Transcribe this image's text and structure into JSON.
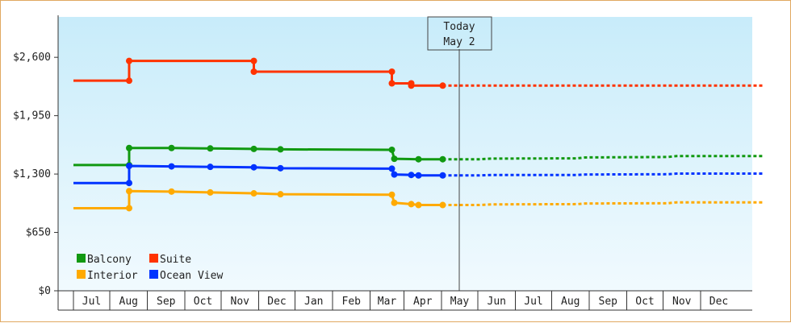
{
  "chart_data": {
    "type": "line",
    "title": "",
    "xlabel": "",
    "ylabel": "",
    "x_unit": "days from Jun 1",
    "months": [
      "Jul",
      "Aug",
      "Sep",
      "Oct",
      "Nov",
      "Dec",
      "Jan",
      "Feb",
      "Mar",
      "Apr",
      "May",
      "Jun",
      "Jul",
      "Aug",
      "Sep",
      "Oct",
      "Nov",
      "Dec"
    ],
    "y_ticks": [
      "$0",
      "$650",
      "$1,300",
      "$1,950",
      "$2,600"
    ],
    "ylim": [
      0,
      3050
    ],
    "grid": false,
    "legend_position": "bottom-left",
    "today_marker": {
      "line1": "Today",
      "line2": "May 2"
    },
    "series": [
      {
        "name": "Balcony",
        "color": "#119911",
        "actual": [
          [
            0,
            1400
          ],
          [
            46,
            1400
          ],
          [
            46,
            1590
          ],
          [
            81,
            1590
          ],
          [
            113,
            1585
          ],
          [
            149,
            1580
          ],
          [
            171,
            1575
          ],
          [
            263,
            1570
          ],
          [
            265,
            1470
          ],
          [
            285,
            1465
          ],
          [
            305,
            1465
          ]
        ],
        "forecast": [
          [
            305,
            1465
          ],
          [
            335,
            1465
          ],
          [
            345,
            1472
          ],
          [
            416,
            1475
          ],
          [
            423,
            1485
          ],
          [
            491,
            1490
          ],
          [
            498,
            1500
          ],
          [
            570,
            1500
          ]
        ]
      },
      {
        "name": "Suite",
        "color": "#ff3300",
        "actual": [
          [
            0,
            2340
          ],
          [
            46,
            2340
          ],
          [
            46,
            2560
          ],
          [
            149,
            2560
          ],
          [
            149,
            2440
          ],
          [
            263,
            2440
          ],
          [
            263,
            2310
          ],
          [
            279,
            2310
          ],
          [
            279,
            2285
          ],
          [
            305,
            2285
          ]
        ],
        "forecast": [
          [
            305,
            2285
          ],
          [
            570,
            2285
          ]
        ]
      },
      {
        "name": "Interior",
        "color": "#ffaa00",
        "actual": [
          [
            0,
            920
          ],
          [
            46,
            920
          ],
          [
            46,
            1110
          ],
          [
            81,
            1105
          ],
          [
            113,
            1095
          ],
          [
            149,
            1085
          ],
          [
            171,
            1075
          ],
          [
            263,
            1070
          ],
          [
            265,
            980
          ],
          [
            279,
            965
          ],
          [
            285,
            955
          ],
          [
            305,
            955
          ]
        ],
        "forecast": [
          [
            305,
            955
          ],
          [
            335,
            955
          ],
          [
            345,
            962
          ],
          [
            416,
            965
          ],
          [
            423,
            972
          ],
          [
            491,
            975
          ],
          [
            498,
            985
          ],
          [
            570,
            985
          ]
        ]
      },
      {
        "name": "Ocean View",
        "color": "#0033ff",
        "actual": [
          [
            0,
            1200
          ],
          [
            46,
            1200
          ],
          [
            46,
            1390
          ],
          [
            81,
            1385
          ],
          [
            113,
            1380
          ],
          [
            149,
            1375
          ],
          [
            171,
            1365
          ],
          [
            263,
            1360
          ],
          [
            265,
            1295
          ],
          [
            279,
            1290
          ],
          [
            285,
            1285
          ],
          [
            305,
            1285
          ]
        ],
        "forecast": [
          [
            305,
            1285
          ],
          [
            335,
            1285
          ],
          [
            345,
            1290
          ],
          [
            416,
            1290
          ],
          [
            423,
            1295
          ],
          [
            491,
            1298
          ],
          [
            498,
            1305
          ],
          [
            570,
            1305
          ]
        ]
      }
    ],
    "legend": [
      {
        "name": "Balcony",
        "color": "#119911"
      },
      {
        "name": "Suite",
        "color": "#ff3300"
      },
      {
        "name": "Interior",
        "color": "#ffaa00"
      },
      {
        "name": "Ocean View",
        "color": "#0033ff"
      }
    ]
  }
}
